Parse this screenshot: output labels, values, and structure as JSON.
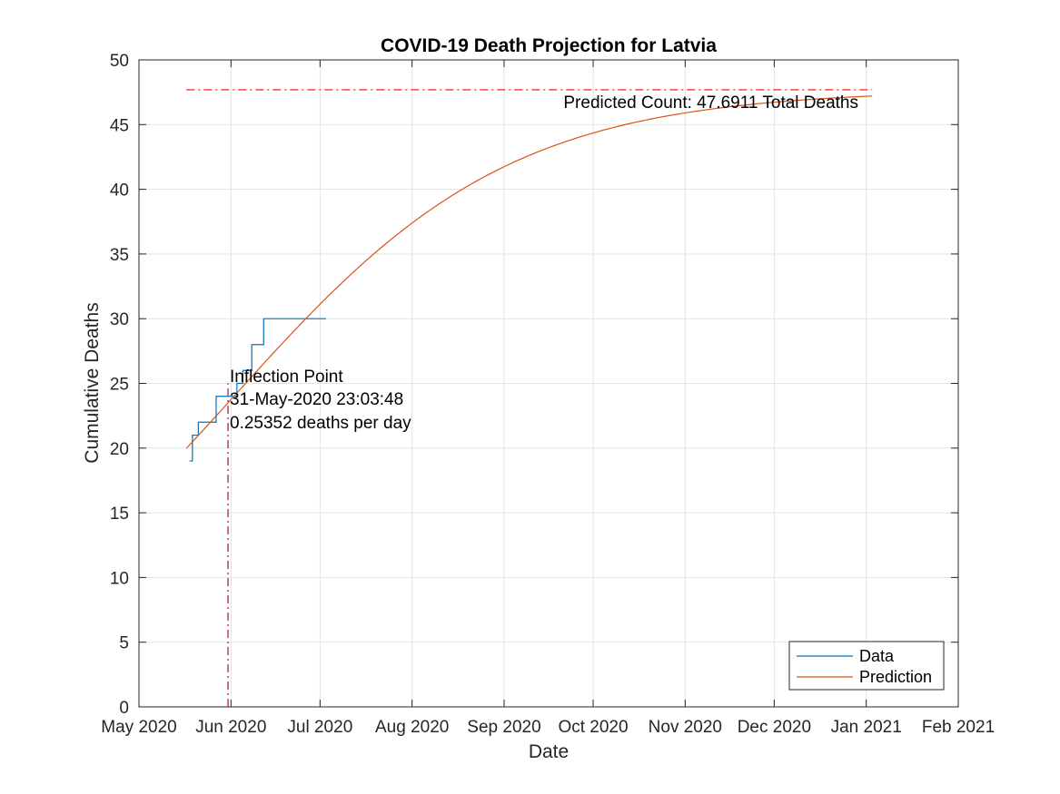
{
  "chart_data": {
    "type": "line",
    "title": "COVID-19 Death Projection for Latvia",
    "xlabel": "Date",
    "ylabel": "Cumulative Deaths",
    "xlim": [
      "2020-05-01",
      "2021-02-01"
    ],
    "ylim": [
      0,
      50
    ],
    "x_ticks": [
      "2020-05-01",
      "2020-06-01",
      "2020-07-01",
      "2020-08-01",
      "2020-09-01",
      "2020-10-01",
      "2020-11-01",
      "2020-12-01",
      "2021-01-01",
      "2021-02-01"
    ],
    "x_tick_labels": [
      "May 2020",
      "Jun 2020",
      "Jul 2020",
      "Aug 2020",
      "Sep 2020",
      "Oct 2020",
      "Nov 2020",
      "Dec 2020",
      "Jan 2021",
      "Feb 2021"
    ],
    "y_ticks": [
      0,
      5,
      10,
      15,
      20,
      25,
      30,
      35,
      40,
      45,
      50
    ],
    "y_tick_labels": [
      "0",
      "5",
      "10",
      "15",
      "20",
      "25",
      "30",
      "35",
      "40",
      "45",
      "50"
    ],
    "grid": true,
    "legend_position": "bottom-right",
    "series": [
      {
        "name": "Data",
        "color": "#0072BD",
        "style": "step",
        "points": [
          {
            "x": "2020-05-18",
            "y": 19
          },
          {
            "x": "2020-05-19",
            "y": 21
          },
          {
            "x": "2020-05-21",
            "y": 22
          },
          {
            "x": "2020-05-27",
            "y": 24
          },
          {
            "x": "2020-06-03",
            "y": 25
          },
          {
            "x": "2020-06-05",
            "y": 26
          },
          {
            "x": "2020-06-08",
            "y": 28
          },
          {
            "x": "2020-06-12",
            "y": 30
          },
          {
            "x": "2020-07-03",
            "y": 30
          }
        ]
      },
      {
        "name": "Prediction",
        "color": "#D95319",
        "style": "line",
        "model": "logistic",
        "start": "2020-05-17",
        "end": "2021-01-03",
        "capacity": 47.6911,
        "inflection": "2020-05-31",
        "inflection_value": 23.5
      }
    ],
    "reference_lines": [
      {
        "orientation": "horizontal",
        "value": 47.6911,
        "from": "2020-05-17",
        "to": "2021-01-03",
        "color": "#FF0000",
        "style": "dash-dot"
      },
      {
        "orientation": "vertical",
        "value": "2020-05-31",
        "from": 0,
        "to": 25,
        "color": "#A2142F",
        "style": "dash-dot"
      }
    ],
    "annotations": {
      "predicted_count": "Predicted Count: 47.6911 Total Deaths",
      "inflection_title": "Inflection Point",
      "inflection_date": "31-May-2020 23:03:48",
      "inflection_rate": "0.25352 deaths per day"
    }
  }
}
